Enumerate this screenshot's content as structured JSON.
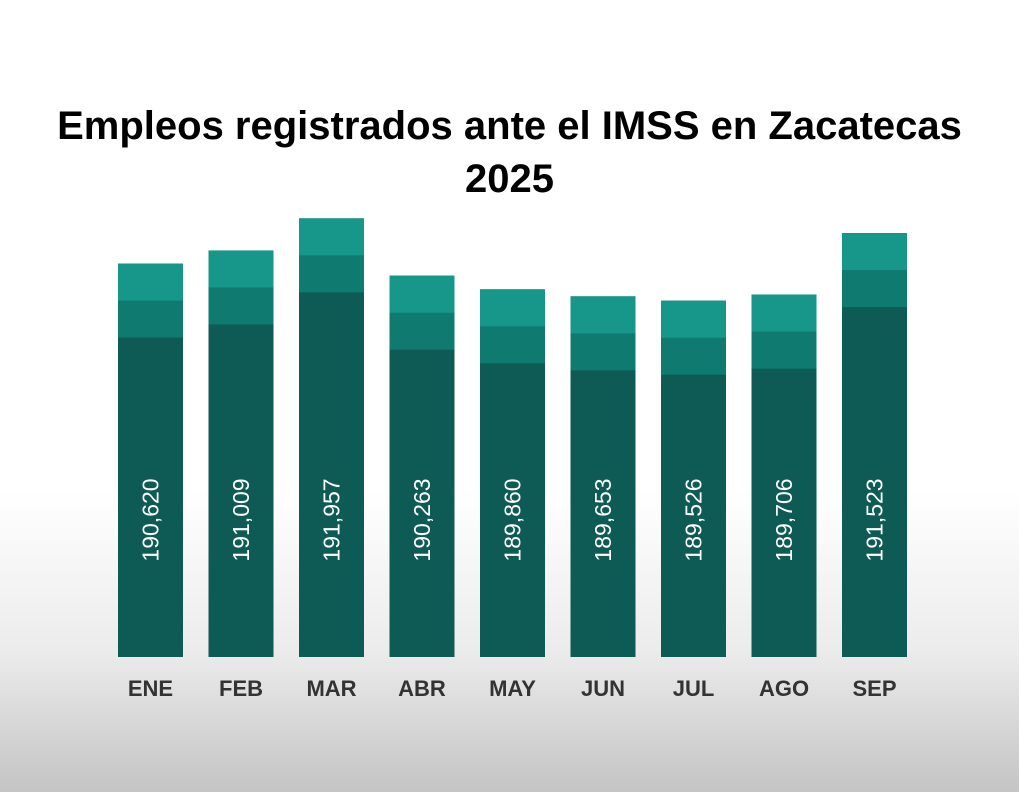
{
  "chart_data": {
    "type": "bar",
    "title": "Empleos registrados ante el IMSS en Zacatecas",
    "subtitle": "2025",
    "xlabel": "",
    "ylabel": "",
    "categories": [
      "ENE",
      "FEB",
      "MAR",
      "ABR",
      "MAY",
      "JUN",
      "JUL",
      "AGO",
      "SEP"
    ],
    "values": [
      190620,
      191009,
      191957,
      190263,
      189860,
      189653,
      189526,
      189706,
      191523
    ],
    "value_labels": [
      "190,620",
      "191,009",
      "191,957",
      "190,263",
      "189,860",
      "189,653",
      "189,526",
      "189,706",
      "191,523"
    ],
    "ylim": [
      179000,
      192500
    ],
    "grid": false,
    "legend": "none"
  },
  "colors": {
    "bar_base": "#0e5b56",
    "bar_middle_band": "#0f7a6f",
    "bar_top_band": "#16978a",
    "value_label": "#ffffff",
    "category_label": "#333333",
    "title": "#000000"
  }
}
